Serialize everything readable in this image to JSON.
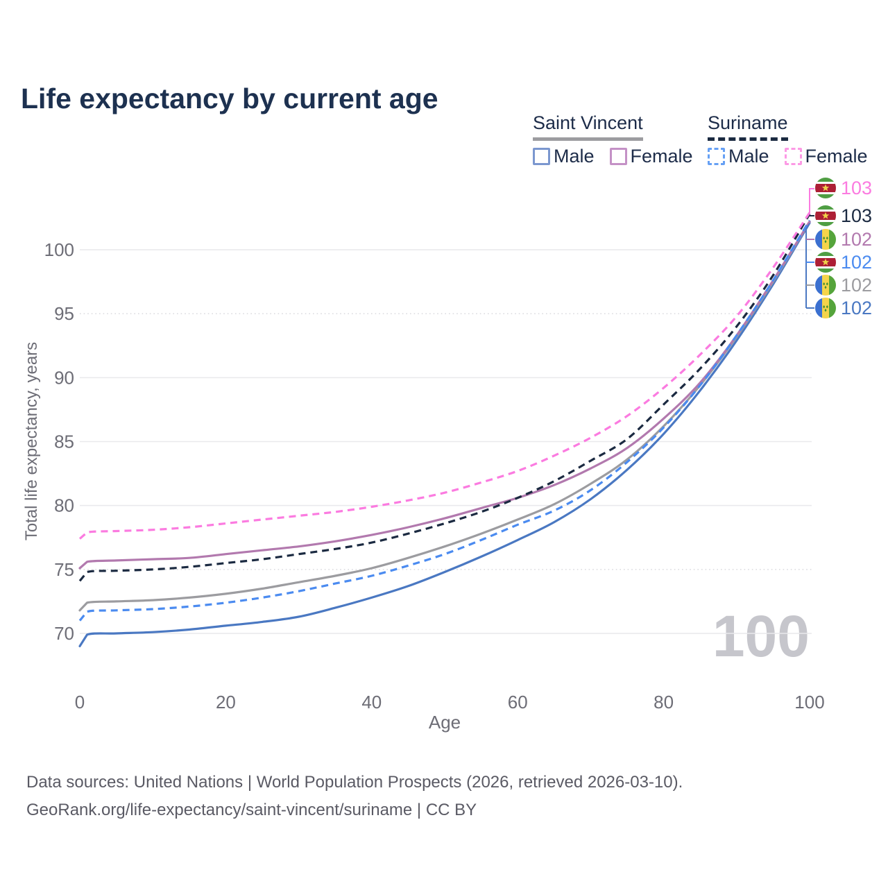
{
  "title": "Life expectancy by current age",
  "legend": {
    "groups": [
      {
        "name": "Saint Vincent",
        "underline_style": "solid",
        "underline_color": "#9c9ca0",
        "items": [
          {
            "label": "Male",
            "box_color": "#7b97cf",
            "box_style": "solid"
          },
          {
            "label": "Female",
            "box_color": "#c491c6",
            "box_style": "solid"
          }
        ]
      },
      {
        "name": "Suriname",
        "underline_style": "dashed",
        "underline_color": "#1b2a41",
        "items": [
          {
            "label": "Male",
            "box_color": "#66a0f4",
            "box_style": "dashed"
          },
          {
            "label": "Female",
            "box_color": "#fc9ae5",
            "box_style": "dashed"
          }
        ]
      }
    ]
  },
  "axes": {
    "y_title": "Total life expectancy, years",
    "x_title": "Age",
    "y_ticks": [
      70,
      75,
      80,
      85,
      90,
      95,
      100
    ],
    "x_ticks": [
      0,
      20,
      40,
      60,
      80,
      100
    ],
    "y_range": [
      70,
      100
    ],
    "x_range": [
      0,
      100
    ]
  },
  "watermark": "100",
  "chart_data": {
    "type": "line",
    "title": "Life expectancy by current age",
    "xlabel": "Age",
    "ylabel": "Total life expectancy, years",
    "xlim": [
      0,
      100
    ],
    "ylim": [
      69,
      103
    ],
    "grid": "horizontal",
    "legend_position": "top-right",
    "x": [
      0,
      1,
      5,
      10,
      15,
      20,
      25,
      30,
      35,
      40,
      45,
      50,
      55,
      60,
      65,
      70,
      75,
      80,
      85,
      90,
      95,
      100
    ],
    "series": [
      {
        "id": "sv-male",
        "name": "Saint Vincent Male",
        "country": "saint-vincent",
        "sex": "male",
        "color": "#4a78c2",
        "line_style": "solid",
        "end_label": "102",
        "values": [
          69.0,
          69.9,
          70.0,
          70.1,
          70.3,
          70.6,
          70.9,
          71.3,
          72.0,
          72.8,
          73.7,
          74.8,
          76.0,
          77.3,
          78.7,
          80.5,
          82.8,
          85.6,
          89.0,
          92.9,
          97.3,
          102.1
        ]
      },
      {
        "id": "sv-total",
        "name": "Saint Vincent Total",
        "country": "saint-vincent",
        "sex": "both",
        "color": "#9c9ca0",
        "line_style": "solid",
        "end_label": "102",
        "values": [
          71.8,
          72.4,
          72.5,
          72.6,
          72.8,
          73.1,
          73.5,
          74.0,
          74.5,
          75.1,
          75.9,
          76.8,
          77.8,
          78.9,
          80.1,
          81.7,
          83.6,
          86.2,
          89.4,
          93.2,
          97.5,
          102.2
        ]
      },
      {
        "id": "sv-female",
        "name": "Saint Vincent Female",
        "country": "saint-vincent",
        "sex": "female",
        "color": "#b279ae",
        "line_style": "solid",
        "end_label": "102",
        "values": [
          75.1,
          75.6,
          75.7,
          75.8,
          75.9,
          76.2,
          76.5,
          76.8,
          77.2,
          77.7,
          78.3,
          79.0,
          79.8,
          80.6,
          81.6,
          82.9,
          84.5,
          86.8,
          89.6,
          93.3,
          97.6,
          102.2
        ]
      },
      {
        "id": "sur-male",
        "name": "Suriname Male",
        "country": "suriname",
        "sex": "male",
        "color": "#4b8bf0",
        "line_style": "dashed",
        "end_label": "102",
        "values": [
          71.0,
          71.7,
          71.8,
          71.9,
          72.1,
          72.4,
          72.8,
          73.3,
          73.9,
          74.5,
          75.3,
          76.2,
          77.3,
          78.5,
          79.6,
          81.2,
          83.4,
          86.1,
          89.4,
          93.3,
          97.6,
          102.3
        ]
      },
      {
        "id": "sur-total",
        "name": "Suriname Total",
        "country": "suriname",
        "sex": "both",
        "color": "#1b2a41",
        "line_style": "dashed",
        "end_label": "103",
        "values": [
          74.1,
          74.8,
          74.9,
          75.0,
          75.2,
          75.5,
          75.8,
          76.2,
          76.6,
          77.1,
          77.8,
          78.6,
          79.5,
          80.6,
          81.9,
          83.5,
          85.2,
          87.9,
          90.7,
          94.0,
          98.0,
          102.8
        ]
      },
      {
        "id": "sur-female",
        "name": "Suriname Female",
        "country": "suriname",
        "sex": "female",
        "color": "#fb7be0",
        "line_style": "dashed",
        "end_label": "103",
        "values": [
          77.4,
          77.9,
          78.0,
          78.1,
          78.3,
          78.6,
          78.9,
          79.2,
          79.5,
          79.9,
          80.4,
          81.0,
          81.8,
          82.7,
          83.9,
          85.3,
          87.0,
          89.2,
          91.8,
          94.8,
          98.6,
          102.9
        ]
      }
    ]
  },
  "end_labels": [
    {
      "flag": "suriname",
      "value": "103",
      "color": "#fb7be0"
    },
    {
      "flag": "suriname",
      "value": "103",
      "color": "#1b2a41"
    },
    {
      "flag": "saint-vincent",
      "value": "102",
      "color": "#b279ae"
    },
    {
      "flag": "suriname",
      "value": "102",
      "color": "#4b8bf0"
    },
    {
      "flag": "saint-vincent",
      "value": "102",
      "color": "#9c9ca0"
    },
    {
      "flag": "saint-vincent",
      "value": "102",
      "color": "#4a78c2"
    }
  ],
  "footer": {
    "line1": "Data sources: United Nations | World Population Prospects (2026, retrieved 2026-03-10).",
    "line2": "GeoRank.org/life-expectancy/saint-vincent/suriname | CC BY"
  }
}
